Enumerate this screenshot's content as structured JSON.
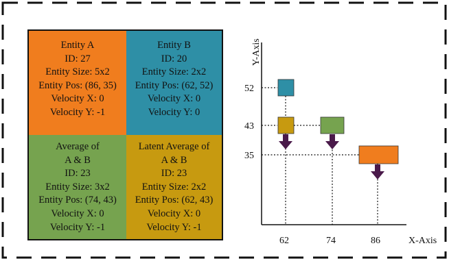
{
  "entities": {
    "a": {
      "lines": [
        "Entity A",
        "ID: 27",
        "Entity Size: 5x2",
        "Entity Pos: (86, 35)",
        "Velocity X: 0",
        "Velocity Y: -1"
      ],
      "color": "#f07d1e"
    },
    "b": {
      "lines": [
        "Entity B",
        "ID: 20",
        "Entity Size: 2x2",
        "Entity Pos: (62, 52)",
        "Velocity X: 0",
        "Velocity Y: 0"
      ],
      "color": "#2e8fa6"
    },
    "avg": {
      "lines": [
        "Average of",
        "A & B",
        "ID: 23",
        "Entity Size: 3x2",
        "Entity Pos: (74, 43)",
        "Velocity X: 0",
        "Velocity Y: -1"
      ],
      "color": "#76a34f"
    },
    "latent": {
      "lines": [
        "Latent Average of",
        "A & B",
        "ID: 23",
        "Entity Size: 2x2",
        "Entity Pos: (62, 43)",
        "Velocity X: 0",
        "Velocity Y: -1"
      ],
      "color": "#c79a10"
    }
  },
  "plot": {
    "y_axis_label": "Y-Axis",
    "x_axis_label": "X-Axis",
    "x_ticks": [
      "62",
      "74",
      "86"
    ],
    "y_ticks": [
      "52",
      "43",
      "35"
    ],
    "arrow_color": "#4a1a4a"
  }
}
